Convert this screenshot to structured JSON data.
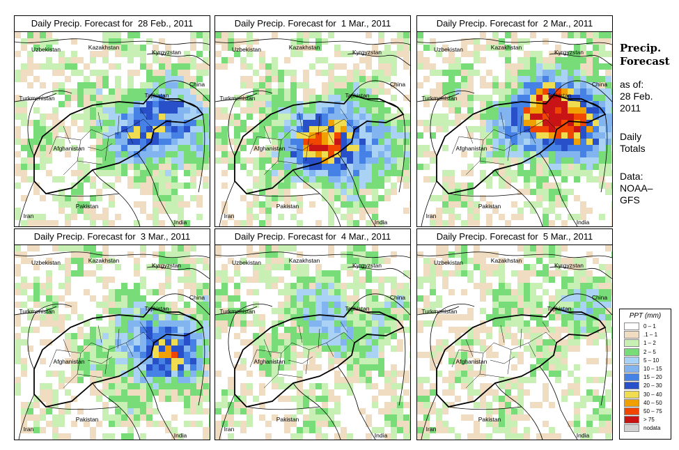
{
  "panels": [
    {
      "title": "Daily Precip. Forecast for  28 Feb., 2011",
      "storm_center": [
        0.72,
        0.47
      ],
      "intensity": 2.0
    },
    {
      "title": "Daily Precip. Forecast for  1 Mar., 2011",
      "storm_center": [
        0.58,
        0.55
      ],
      "intensity": 2.6
    },
    {
      "title": "Daily Precip. Forecast for  2 Mar., 2011",
      "storm_center": [
        0.7,
        0.42
      ],
      "intensity": 3.2
    },
    {
      "title": "Daily Precip. Forecast for  3 Mar., 2011",
      "storm_center": [
        0.75,
        0.52
      ],
      "intensity": 2.0
    },
    {
      "title": "Daily Precip. Forecast for  4 Mar., 2011",
      "storm_center": [
        0.62,
        0.38
      ],
      "intensity": 1.0
    },
    {
      "title": "Daily Precip. Forecast for  5 Mar., 2011",
      "storm_center": [
        0.8,
        0.3
      ],
      "intensity": 0.6
    }
  ],
  "country_labels": [
    "Uzbekistan",
    "Kazakhstan",
    "Kyrgyzstan",
    "China",
    "Turkmenistan",
    "Tajikistan",
    "Afghanistan",
    "Pakistan",
    "Iran",
    "India"
  ],
  "sidebar": {
    "title_line1": "Precip.",
    "title_line2": "Forecast",
    "asof_line1": "as of:",
    "asof_line2": "28 Feb.",
    "asof_line3": "2011",
    "daily_line1": "Daily",
    "daily_line2": "Totals",
    "data_line1": "Data:",
    "data_line2": "NOAA–",
    "data_line3": "GFS"
  },
  "legend": {
    "title": "PPT (mm)",
    "items": [
      {
        "label": "0 – 1",
        "color": "#ffffff"
      },
      {
        "label": ".1 – 1",
        "color": "#f0dcc0"
      },
      {
        "label": "1 – 2",
        "color": "#c8f0b4"
      },
      {
        "label": "2 – 5",
        "color": "#78dc78"
      },
      {
        "label": "5 – 10",
        "color": "#aad2f5"
      },
      {
        "label": "10 – 15",
        "color": "#82b4f0"
      },
      {
        "label": "15 – 20",
        "color": "#4682e6"
      },
      {
        "label": "20 – 30",
        "color": "#2850c8"
      },
      {
        "label": "30 – 40",
        "color": "#f0dc50"
      },
      {
        "label": "40 – 50",
        "color": "#f0a000"
      },
      {
        "label": "50 – 75",
        "color": "#f04600"
      },
      {
        "label": "> 75",
        "color": "#c81414"
      },
      {
        "label": "nodata",
        "color": "#d2d2d2"
      }
    ]
  }
}
